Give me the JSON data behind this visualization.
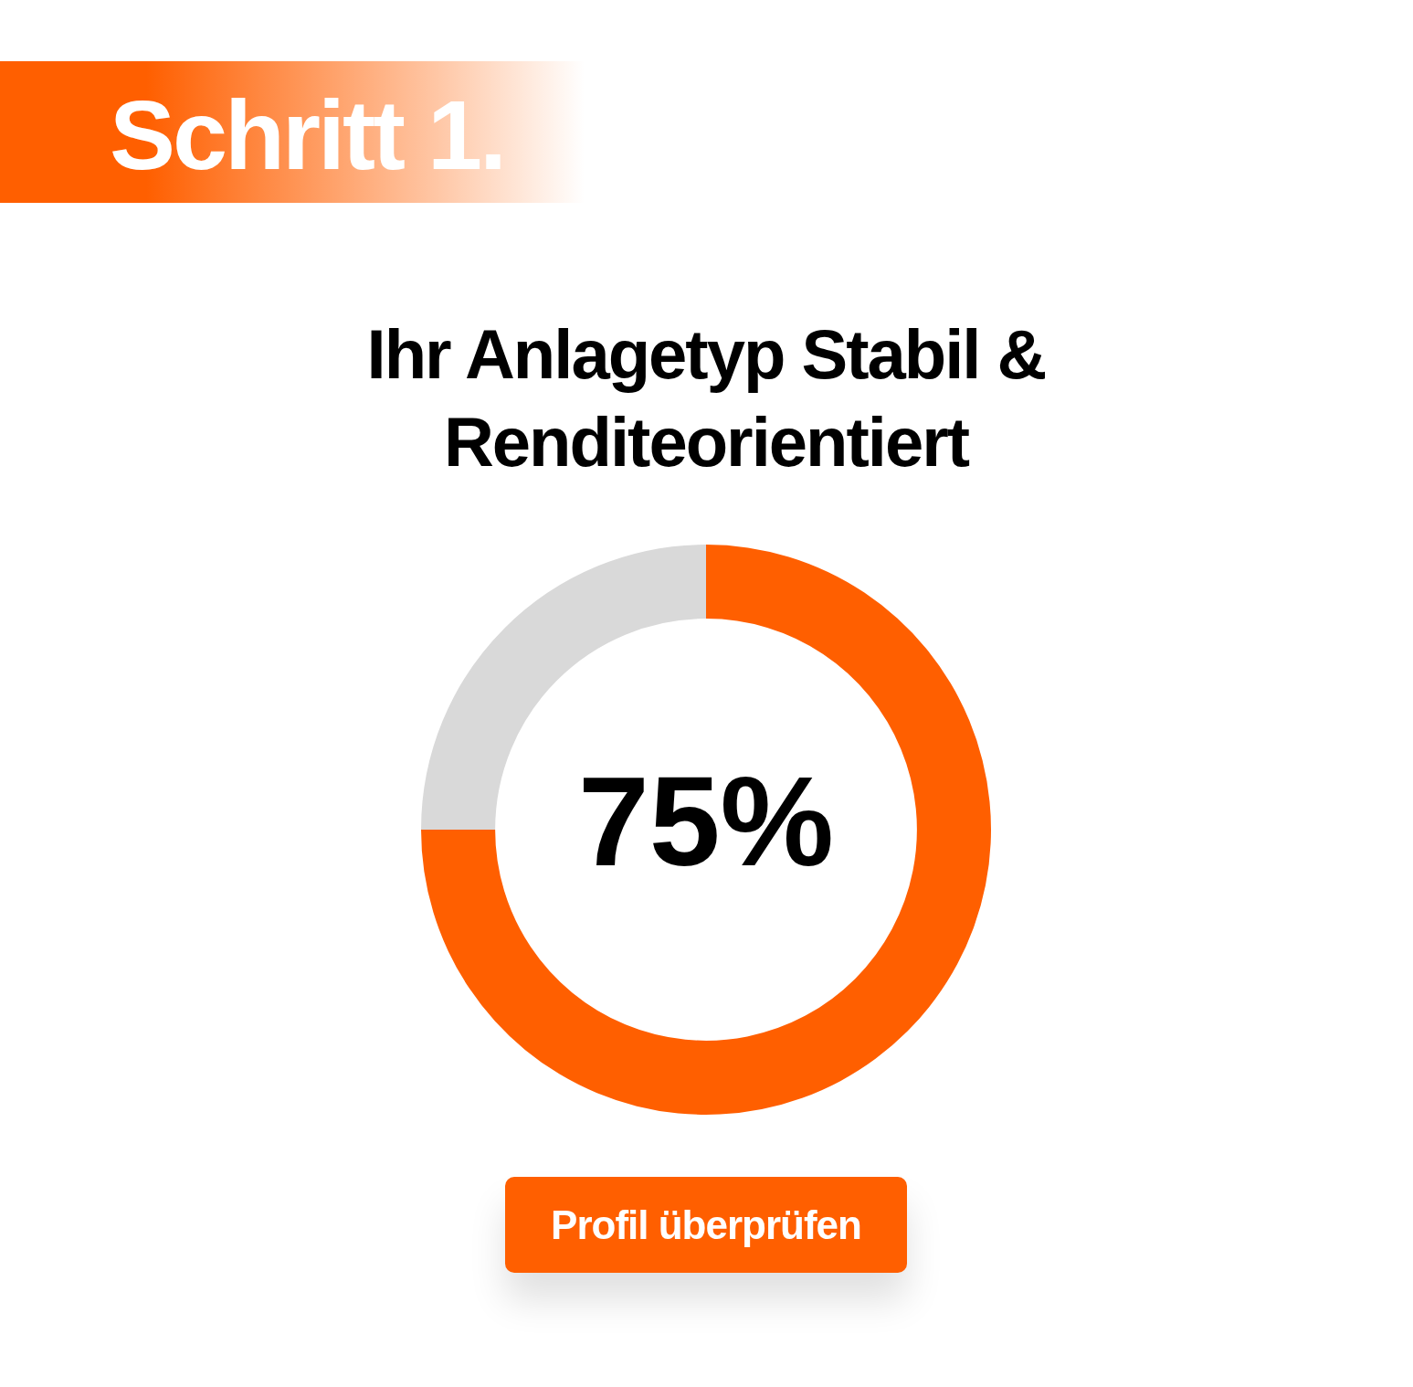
{
  "chart_data": {
    "type": "donut",
    "title": "Ihr Anlagetyp Stabil & Renditeorientiert",
    "annotations": [
      "Schritt 1.",
      "Profil überprüfen"
    ],
    "categories": [
      null,
      null
    ],
    "values": [
      75,
      25
    ],
    "colors": [
      "#ff5f00",
      "#d9d9d9"
    ],
    "value_labels": [
      "75%",
      null
    ],
    "legend": false
  }
}
